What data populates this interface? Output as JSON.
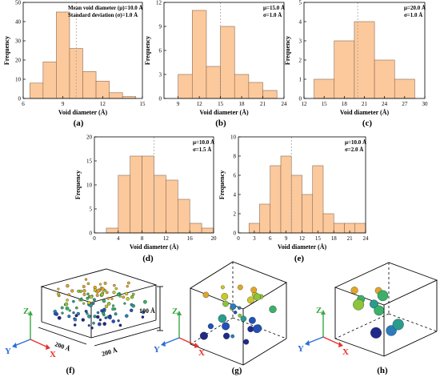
{
  "chart_data": [
    {
      "type": "bar",
      "id": "a",
      "panel_label": "(a)",
      "xlabel": "Void diameter (Å)",
      "ylabel": "Frequency",
      "annotations": [
        "Mean void diameter (μ)=10.0 Å",
        "Standard deviation (σ)=1.0 Å"
      ],
      "xlim": [
        6,
        15
      ],
      "ylim": [
        0,
        50
      ],
      "xticks": [
        6,
        9,
        12,
        15
      ],
      "yticks": [
        0,
        10,
        20,
        30,
        40,
        50
      ],
      "mean": 10,
      "bins": [
        [
          6.5,
          7.5,
          8
        ],
        [
          7.5,
          8.5,
          19
        ],
        [
          8.5,
          9.5,
          45
        ],
        [
          9.5,
          10.5,
          26
        ],
        [
          10.5,
          11.5,
          14
        ],
        [
          11.5,
          12.5,
          9
        ],
        [
          12.5,
          13.5,
          3
        ],
        [
          13.5,
          14.5,
          1
        ]
      ]
    },
    {
      "type": "bar",
      "id": "b",
      "panel_label": "(b)",
      "xlabel": "Void diameter (Å)",
      "ylabel": "Frequency",
      "annotations": [
        "μ=15.0 Å",
        "σ=1.0 Å"
      ],
      "xlim": [
        7,
        24
      ],
      "ylim": [
        0,
        12
      ],
      "xticks": [
        9,
        12,
        15,
        18,
        21,
        24
      ],
      "yticks": [
        0,
        3,
        6,
        9,
        12
      ],
      "mean": 15,
      "bins": [
        [
          9,
          11,
          3
        ],
        [
          11,
          13,
          11
        ],
        [
          13,
          15,
          4
        ],
        [
          15,
          17,
          9
        ],
        [
          17,
          19,
          3
        ],
        [
          19,
          21,
          2
        ],
        [
          21,
          23,
          1
        ]
      ]
    },
    {
      "type": "bar",
      "id": "c",
      "panel_label": "(c)",
      "xlabel": "Void diameter (Å)",
      "ylabel": "Frequency",
      "annotations": [
        "μ=20.0 Å",
        "σ=1.0 Å"
      ],
      "xlim": [
        12,
        30
      ],
      "ylim": [
        0,
        5
      ],
      "xticks": [
        12,
        15,
        18,
        21,
        24,
        27,
        30
      ],
      "yticks": [
        0,
        1,
        2,
        3,
        4,
        5
      ],
      "mean": 20,
      "bins": [
        [
          13.5,
          16.5,
          1
        ],
        [
          16.5,
          19.5,
          3
        ],
        [
          19.5,
          22.5,
          4
        ],
        [
          22.5,
          25.5,
          2
        ],
        [
          25.5,
          28.5,
          1
        ]
      ]
    },
    {
      "type": "bar",
      "id": "d",
      "panel_label": "(d)",
      "xlabel": "Void diameter (Å)",
      "ylabel": "Frequency",
      "annotations": [
        "μ=10.0 Å",
        "σ=1.5 Å"
      ],
      "xlim": [
        0,
        20
      ],
      "ylim": [
        0,
        20
      ],
      "xticks": [
        0,
        4,
        8,
        12,
        16,
        20
      ],
      "yticks": [
        0,
        5,
        10,
        15,
        20
      ],
      "mean": 10,
      "bins": [
        [
          2,
          4,
          1
        ],
        [
          4,
          6,
          12
        ],
        [
          6,
          8,
          16
        ],
        [
          8,
          10,
          16
        ],
        [
          10,
          12,
          12
        ],
        [
          12,
          14,
          11
        ],
        [
          14,
          16,
          7
        ],
        [
          16,
          18,
          2
        ],
        [
          18,
          20,
          1
        ]
      ]
    },
    {
      "type": "bar",
      "id": "e",
      "panel_label": "(e)",
      "xlabel": "Void diameter (Å)",
      "ylabel": "Frequency",
      "annotations": [
        "μ=10.0 Å",
        "σ=2.0 Å"
      ],
      "xlim": [
        0,
        24
      ],
      "ylim": [
        0,
        10
      ],
      "xticks": [
        0,
        3,
        6,
        9,
        12,
        15,
        18,
        21,
        24
      ],
      "yticks": [
        0,
        2,
        4,
        6,
        8,
        10
      ],
      "mean": 10,
      "bins": [
        [
          2,
          4,
          1
        ],
        [
          4,
          6,
          3
        ],
        [
          6,
          8,
          7
        ],
        [
          8,
          10,
          8
        ],
        [
          10,
          12,
          6
        ],
        [
          12,
          14,
          4
        ],
        [
          14,
          16,
          7
        ],
        [
          16,
          18,
          2
        ],
        [
          18,
          20,
          1
        ],
        [
          20,
          22,
          1
        ],
        [
          22,
          24,
          1
        ]
      ]
    }
  ],
  "panels_3d": [
    {
      "id": "f",
      "panel_label": "(f)",
      "dim_height": "100 Å",
      "dim_depth": "200 Å",
      "dim_width": "200 Å",
      "axes": [
        "Z",
        "Y",
        "X"
      ],
      "void_count": 120
    },
    {
      "id": "g",
      "panel_label": "(g)",
      "axes": [
        "Z",
        "Y",
        "X"
      ],
      "void_count": 28
    },
    {
      "id": "h",
      "panel_label": "(h)",
      "axes": [
        "Z",
        "Y",
        "X"
      ],
      "void_count": 10
    }
  ],
  "colors": {
    "bar_fill": "#fcc99d",
    "bar_edge": "#8c6a4f",
    "axis_x": "#e8312a",
    "axis_y": "#2a6fd6",
    "axis_z": "#3aa845"
  }
}
